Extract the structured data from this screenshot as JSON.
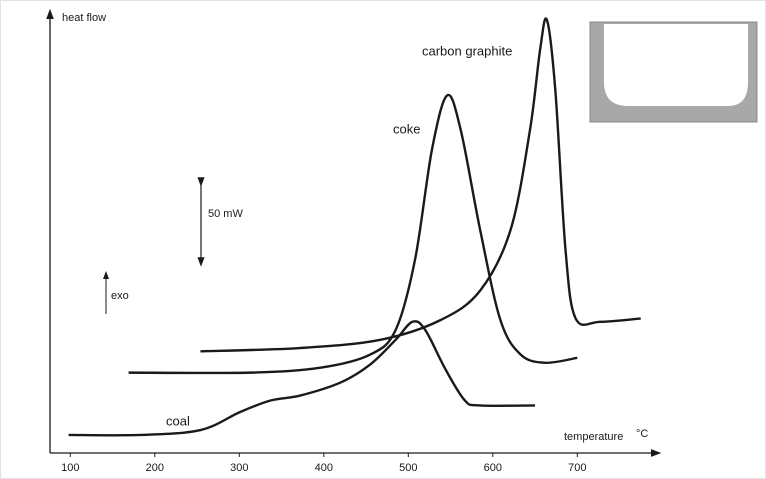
{
  "chart_data": {
    "type": "line",
    "y_label": "heat flow",
    "x_label": "temperature",
    "x_unit": "°C",
    "scale_label": "50 mW",
    "direction_label": "exo",
    "xlim": [
      76,
      786
    ],
    "ylim": [
      0,
      267
    ],
    "xticks": [
      100,
      200,
      300,
      400,
      500,
      600,
      700
    ],
    "series": [
      {
        "name": "coal",
        "color": "#1a1a1a",
        "x": [
          98,
          183,
          254,
          301,
          337,
          372,
          420,
          455,
          485,
          505,
          520,
          544,
          567,
          585,
          650
        ],
        "values": [
          11,
          11,
          14,
          25,
          32,
          35,
          43,
          54,
          69,
          80,
          75,
          51,
          32,
          29,
          29
        ]
      },
      {
        "name": "coke",
        "color": "#1a1a1a",
        "x": [
          169,
          313,
          396,
          455,
          485,
          508,
          528,
          546,
          562,
          585,
          609,
          633,
          662,
          700
        ],
        "values": [
          49,
          49,
          52,
          60,
          75,
          118,
          185,
          218,
          197,
          136,
          81,
          60,
          55,
          58
        ]
      },
      {
        "name": "carbon graphite",
        "color": "#1a1a1a",
        "x": [
          254,
          372,
          467,
          538,
          585,
          621,
          644,
          656,
          664,
          674,
          686,
          698,
          727,
          775
        ],
        "values": [
          62,
          64,
          69,
          81,
          99,
          136,
          197,
          246,
          264,
          221,
          124,
          82,
          80,
          82
        ]
      }
    ]
  }
}
